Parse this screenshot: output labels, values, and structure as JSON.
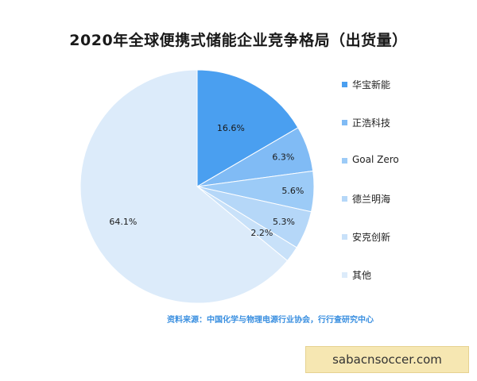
{
  "chart_data": {
    "type": "pie",
    "title": "2020年全球便携式储能企业竞争格局（出货量）",
    "slices": [
      {
        "name": "华宝新能",
        "value": 16.6,
        "label": "16.6%",
        "color": "#4a9ff0"
      },
      {
        "name": "正浩科技",
        "value": 6.3,
        "label": "6.3%",
        "color": "#80bbf5"
      },
      {
        "name": "Goal Zero",
        "value": 5.6,
        "label": "5.6%",
        "color": "#9ccbf7"
      },
      {
        "name": "德兰明海",
        "value": 5.3,
        "label": "5.3%",
        "color": "#b5d7f8"
      },
      {
        "name": "安克创新",
        "value": 2.2,
        "label": "2.2%",
        "color": "#c8e1f9"
      },
      {
        "name": "其他",
        "value": 64.1,
        "label": "64.1%",
        "color": "#dcebfa"
      }
    ],
    "legend_position": "right",
    "start": "12 o'clock",
    "direction": "clockwise"
  },
  "source_text": "资料来源：中国化学与物理电源行业协会，行行查研究中心",
  "watermark_text": "sabacnsoccer.com"
}
